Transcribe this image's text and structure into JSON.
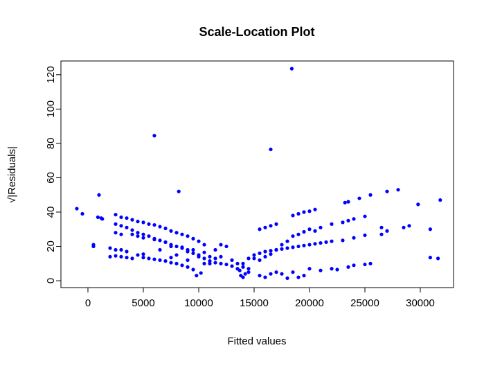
{
  "chart_data": {
    "type": "scatter",
    "title": "Scale-Location Plot",
    "x_label": "Fitted values",
    "y_label": "√|Residuals|",
    "color": "#0000ff",
    "xlim": [
      -2437,
      33000
    ],
    "ylim": [
      -4,
      128
    ],
    "xticks": [
      0,
      5000,
      10000,
      15000,
      20000,
      25000,
      30000
    ],
    "yticks": [
      0,
      20,
      40,
      60,
      80,
      100,
      120
    ],
    "x": [
      -1000,
      -500,
      500,
      500,
      1000,
      900,
      1200,
      1300,
      6000,
      8200,
      16500,
      18400,
      27000,
      28000,
      29800,
      30900,
      30900,
      31600,
      31800,
      2500,
      3000,
      3500,
      4000,
      4500,
      5000,
      5500,
      6000,
      6500,
      7000,
      7500,
      8000,
      8500,
      9000,
      9500,
      10000,
      10500,
      2500,
      3000,
      3500,
      4000,
      4500,
      5000,
      5500,
      6000,
      6500,
      7000,
      7500,
      8000,
      8500,
      9000,
      9500,
      10000,
      10500,
      11000,
      11500,
      12000,
      12500,
      13000,
      13500,
      2000,
      2500,
      3000,
      3500,
      4000,
      5000,
      5500,
      6000,
      6500,
      7000,
      7500,
      8000,
      8500,
      9000,
      9500,
      9800,
      10200,
      2500,
      3000,
      4000,
      4500,
      5000,
      6000,
      7000,
      7500,
      8500,
      9000,
      9500,
      10000,
      10500,
      11000,
      11500,
      12000,
      2000,
      2500,
      3000,
      3500,
      4500,
      5000,
      6500,
      7500,
      8000,
      9000,
      10500,
      11000,
      12000,
      12500,
      11500,
      13000,
      13500,
      13800,
      14000,
      14200,
      14500,
      13700,
      14000,
      14500,
      14000,
      14500,
      15000,
      15500,
      16000,
      16500,
      17000,
      17500,
      18000,
      18500,
      19000,
      19500,
      20000,
      20500,
      21000,
      21500,
      22000,
      23000,
      24000,
      25000,
      26500,
      27000,
      15000,
      15500,
      16000,
      16500,
      17000,
      17500,
      18000,
      18500,
      19000,
      19500,
      20000,
      20500,
      21000,
      22000,
      23000,
      23500,
      24000,
      25000,
      26500,
      28500,
      29000,
      18500,
      19000,
      19500,
      20000,
      20500,
      23200,
      23500,
      24500,
      25500,
      15500,
      16000,
      16500,
      17000,
      15500,
      16000,
      16500,
      17000,
      17500,
      18000,
      18500,
      19000,
      19500,
      20000,
      21000,
      22000,
      22500,
      23500,
      24000,
      25000,
      25500
    ],
    "values": [
      42,
      39,
      21,
      20,
      50,
      37,
      36.5,
      36,
      84.5,
      52,
      76.5,
      123.5,
      52,
      53,
      44.5,
      30,
      13.5,
      13,
      47,
      38.5,
      37,
      36.5,
      35.5,
      34.5,
      34,
      33,
      32.5,
      31.5,
      30.5,
      29,
      28,
      27,
      26,
      24.5,
      23,
      21,
      33,
      32,
      31,
      29.5,
      28,
      27,
      26,
      24.5,
      23.5,
      22.5,
      21,
      20,
      19,
      17,
      16,
      15,
      13,
      11.5,
      10.5,
      10,
      9.5,
      8.5,
      7,
      14,
      14.5,
      14,
      13.5,
      13,
      13.5,
      13,
      12.5,
      12,
      11.5,
      10.5,
      10,
      9,
      8,
      6.5,
      3,
      4.5,
      28,
      27,
      27,
      26,
      25,
      24,
      22.5,
      20,
      19.5,
      18,
      18,
      14,
      16.5,
      14,
      13,
      14,
      19,
      18,
      18,
      17,
      15,
      15.5,
      18,
      13.5,
      15,
      12,
      10,
      10,
      21,
      20,
      18,
      12,
      10,
      3,
      2,
      4,
      5,
      6,
      8,
      7,
      10,
      13,
      15,
      16,
      17,
      17.5,
      18,
      18.5,
      19,
      19.5,
      20,
      20.5,
      21,
      21.5,
      22,
      22.5,
      23,
      23.5,
      25,
      26.5,
      27,
      29,
      13,
      12,
      14,
      15.5,
      18,
      21,
      23,
      26,
      27,
      28.5,
      30,
      29,
      31,
      33,
      34,
      35,
      36,
      37.5,
      31,
      31,
      32,
      38,
      39,
      40,
      40.5,
      41.5,
      45.5,
      46,
      48,
      50,
      30,
      31,
      32,
      33,
      3,
      2,
      4,
      5,
      4,
      1.5,
      5,
      2,
      3,
      7,
      6,
      7,
      6.5,
      8,
      9,
      9.5,
      10
    ]
  }
}
